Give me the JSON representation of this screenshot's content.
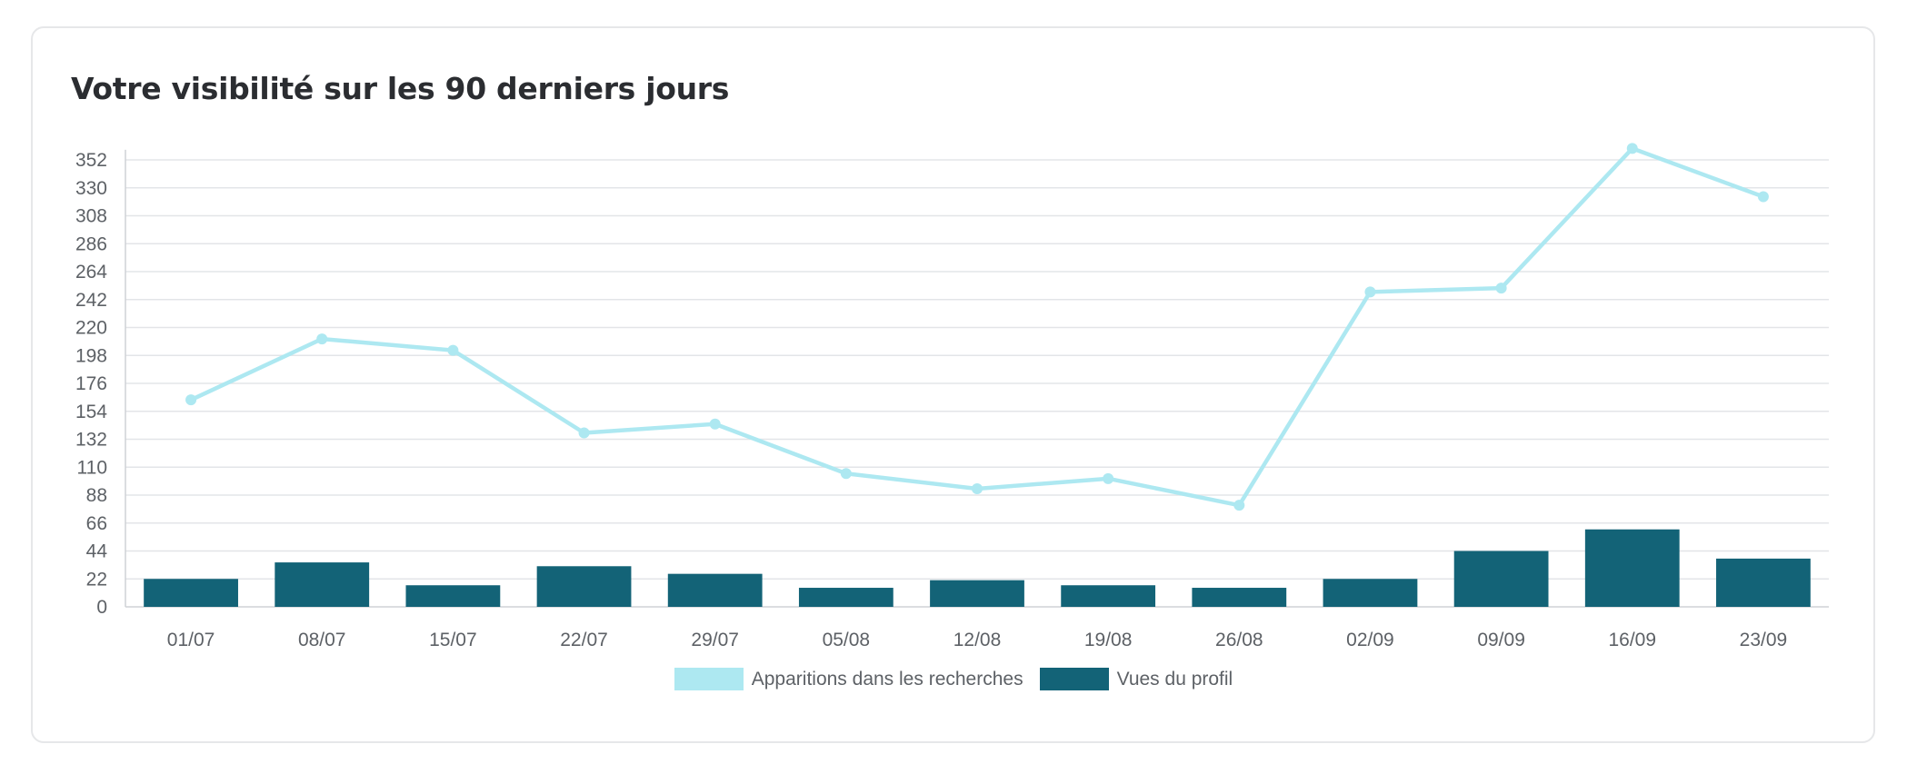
{
  "card": {
    "title": "Votre visibilité sur les 90 derniers jours"
  },
  "colors": {
    "line": "#ade8f1",
    "bars": "#136377",
    "grid": "#e3e5e8",
    "axis": "#cfd2d6",
    "text": "#5d6166"
  },
  "chart_data": {
    "type": "bar",
    "title": "Votre visibilité sur les 90 derniers jours",
    "xlabel": "",
    "ylabel": "",
    "ylim": [
      0,
      360
    ],
    "yticks": [
      0,
      22,
      44,
      66,
      88,
      110,
      132,
      154,
      176,
      198,
      220,
      242,
      264,
      286,
      308,
      330,
      352
    ],
    "grid": true,
    "legend_position": "bottom",
    "categories": [
      "01/07",
      "08/07",
      "15/07",
      "22/07",
      "29/07",
      "05/08",
      "12/08",
      "19/08",
      "26/08",
      "02/09",
      "09/09",
      "16/09",
      "23/09"
    ],
    "series": [
      {
        "name": "Apparitions dans les recherches",
        "type": "line",
        "values": [
          163,
          211,
          202,
          137,
          144,
          105,
          93,
          101,
          80,
          248,
          251,
          361,
          323
        ]
      },
      {
        "name": "Vues du profil",
        "type": "bar",
        "values": [
          22,
          35,
          17,
          32,
          26,
          15,
          21,
          17,
          15,
          22,
          44,
          61,
          38
        ]
      }
    ]
  }
}
